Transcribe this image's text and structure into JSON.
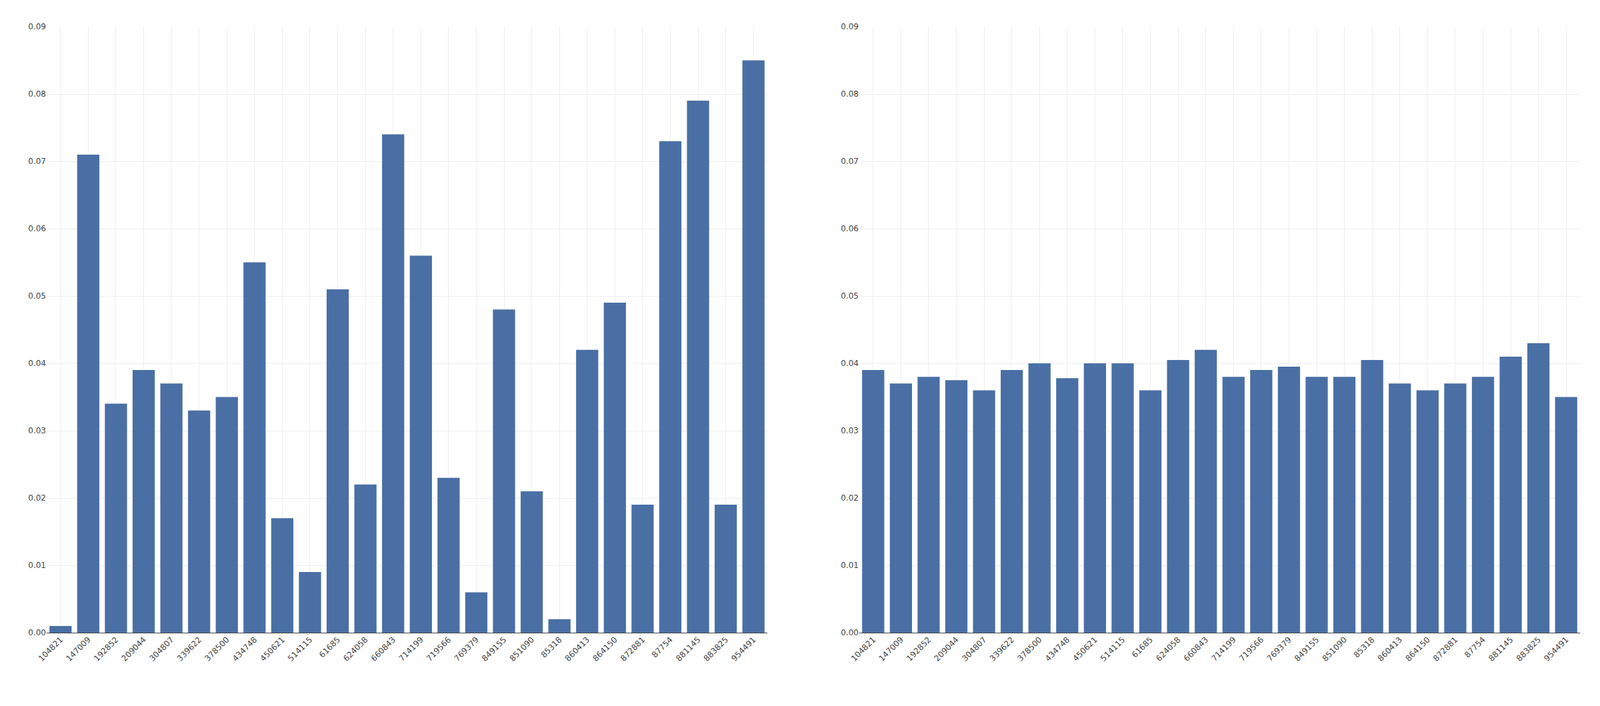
{
  "chart_data": [
    {
      "type": "bar",
      "categories": [
        "104821",
        "147009",
        "192852",
        "209044",
        "304807",
        "339622",
        "378500",
        "434748",
        "450621",
        "514115",
        "61685",
        "624058",
        "660843",
        "714199",
        "719566",
        "769379",
        "849155",
        "851090",
        "85318",
        "860413",
        "864150",
        "872881",
        "87754",
        "881145",
        "883825",
        "954491"
      ],
      "values": [
        0.001,
        0.071,
        0.034,
        0.039,
        0.037,
        0.033,
        0.035,
        0.055,
        0.017,
        0.009,
        0.051,
        0.022,
        0.074,
        0.056,
        0.023,
        0.006,
        0.048,
        0.021,
        0.002,
        0.042,
        0.049,
        0.019,
        0.073,
        0.079,
        0.019,
        0.085
      ],
      "color": "#4a6fa5",
      "ylim": [
        0,
        0.09
      ],
      "yticks": [
        {
          "value": 0,
          "label": "0.00"
        },
        0.01,
        0.02,
        0.03,
        0.04,
        0.05,
        0.06,
        0.07,
        0.08,
        0.09
      ],
      "grid": true
    },
    {
      "type": "bar",
      "categories": [
        "104821",
        "147009",
        "192852",
        "209044",
        "304807",
        "339622",
        "378500",
        "434748",
        "450621",
        "514115",
        "61685",
        "624058",
        "660843",
        "714199",
        "719566",
        "769379",
        "849155",
        "851090",
        "85318",
        "860413",
        "864150",
        "872881",
        "87754",
        "881145",
        "883825",
        "954491"
      ],
      "values": [
        0.039,
        0.037,
        0.038,
        0.0375,
        0.036,
        0.039,
        0.04,
        0.0378,
        0.04,
        0.04,
        0.036,
        0.0405,
        0.042,
        0.038,
        0.039,
        0.0395,
        0.038,
        0.038,
        0.0405,
        0.037,
        0.036,
        0.037,
        0.038,
        0.041,
        0.043,
        0.035
      ],
      "color": "#4a6fa5",
      "ylim": [
        0,
        0.09
      ],
      "yticks": [
        {
          "value": 0,
          "label": "0.00"
        },
        0.01,
        0.02,
        0.03,
        0.04,
        0.05,
        0.06,
        0.07,
        0.08,
        0.09
      ],
      "grid": true
    }
  ]
}
